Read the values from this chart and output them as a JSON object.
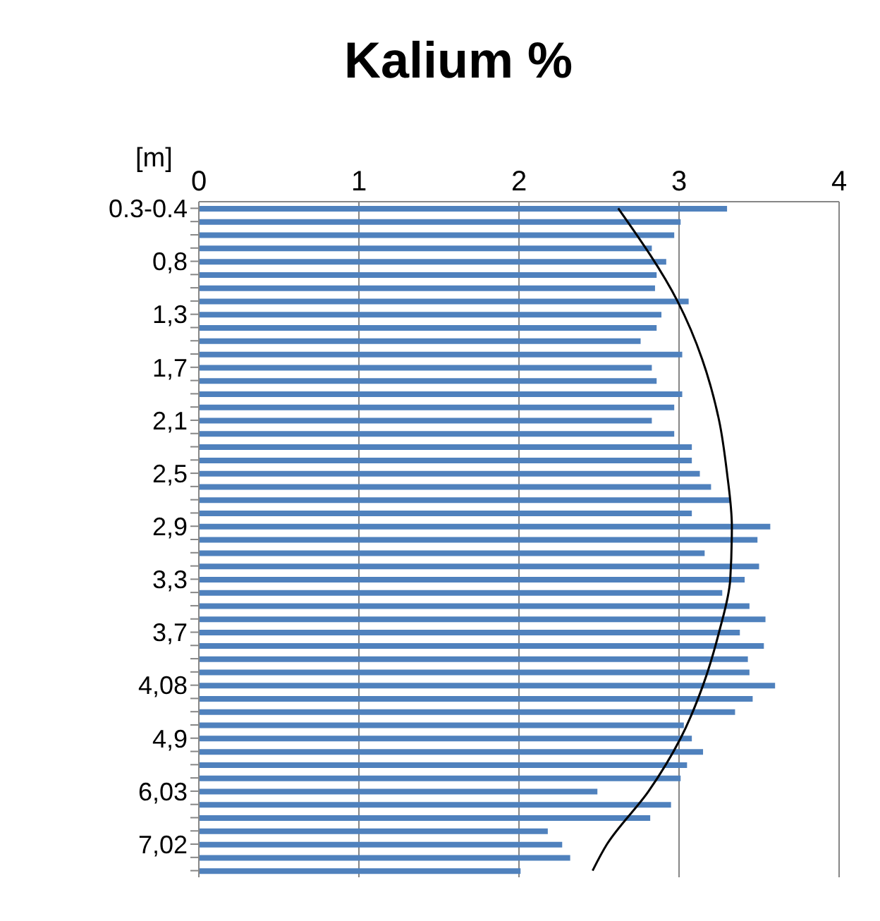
{
  "chart_data": {
    "type": "bar",
    "orientation": "horizontal",
    "title": "Kalium %",
    "ylabel": "[m]",
    "categories": [
      "0.3-0.4",
      null,
      null,
      null,
      "0,8",
      null,
      null,
      null,
      "1,3",
      null,
      null,
      null,
      "1,7",
      null,
      null,
      null,
      "2,1",
      null,
      null,
      null,
      "2,5",
      null,
      null,
      null,
      "2,9",
      null,
      null,
      null,
      "3,3",
      null,
      null,
      null,
      "3,7",
      null,
      null,
      null,
      "4,08",
      null,
      null,
      null,
      "4,9",
      null,
      null,
      null,
      "6,03",
      null,
      null,
      null,
      "7,02",
      null,
      null
    ],
    "series": [
      {
        "color": "#4f81bd",
        "values": [
          3.3,
          3.01,
          2.97,
          2.83,
          2.92,
          2.86,
          2.85,
          3.06,
          2.89,
          2.86,
          2.76,
          3.02,
          2.83,
          2.86,
          3.02,
          2.97,
          2.83,
          2.97,
          3.08,
          3.08,
          3.13,
          3.2,
          3.32,
          3.08,
          3.57,
          3.49,
          3.16,
          3.5,
          3.41,
          3.27,
          3.44,
          3.54,
          3.38,
          3.53,
          3.43,
          3.44,
          3.6,
          3.46,
          3.35,
          3.03,
          3.08,
          3.15,
          3.05,
          3.01,
          2.49,
          2.95,
          2.82,
          2.18,
          2.27,
          2.32,
          2.01
        ]
      },
      {
        "type": "line",
        "color": "#000000",
        "marker": "none",
        "values": [
          2.62,
          null,
          null,
          null,
          null,
          null,
          null,
          2.99,
          null,
          null,
          null,
          null,
          null,
          null,
          null,
          null,
          3.25,
          null,
          null,
          null,
          3.3,
          null,
          null,
          null,
          3.33,
          null,
          null,
          null,
          3.32,
          null,
          null,
          null,
          3.25,
          null,
          null,
          null,
          3.15,
          null,
          null,
          null,
          3.01,
          null,
          null,
          null,
          2.81,
          null,
          null,
          null,
          2.55,
          null,
          2.46
        ]
      }
    ],
    "xlim": [
      0,
      4
    ],
    "xticks": [
      0,
      1,
      2,
      3,
      4
    ],
    "grid": "x",
    "legend": false
  }
}
